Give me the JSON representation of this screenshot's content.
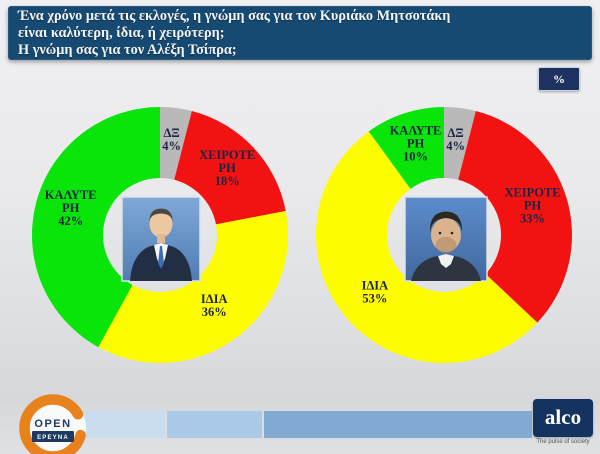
{
  "header": {
    "line1": "Ένα χρόνο μετά τις εκλογές,  η γνώμη σας για τον Κυριάκο Μητσοτάκη",
    "line2": "είναι καλύτερη, ίδια, ή χειρότερη;",
    "line3": "Η γνώμη σας για τον Αλέξη Τσίπρα;"
  },
  "percent_badge": "%",
  "colors": {
    "header_navy": "#174a72",
    "badge_navy": "#1d3260",
    "label_navy": "#1c2444",
    "green": "#09e409",
    "yellow": "#fdfd00",
    "red": "#f21212",
    "gray": "#b9b9b9"
  },
  "chart_data": [
    {
      "type": "pie",
      "subtype": "donut",
      "subject": "Κυριάκος Μητσοτάκης",
      "legend": false,
      "direction": "clockwise",
      "start_angle_deg": 0,
      "segments": [
        {
          "label": "ΔΞ",
          "value": 4,
          "color": "#b9b9b9",
          "label_lines": [
            "ΔΞ",
            "4%"
          ]
        },
        {
          "label": "ΧΕΙΡΟΤΕΡΗ",
          "value": 18,
          "color": "#f21212",
          "label_lines": [
            "ΧΕΙΡΟΤΕ",
            "ΡΗ",
            "18%"
          ]
        },
        {
          "label": "ΙΔΙΑ",
          "value": 36,
          "color": "#fdfd00",
          "label_lines": [
            "ΙΔΙΑ",
            "36%"
          ]
        },
        {
          "label": "ΚΑΛΥΤΕΡΗ",
          "value": 42,
          "color": "#09e409",
          "label_lines": [
            "ΚΑΛΥΤΕ",
            "ΡΗ",
            "42%"
          ]
        }
      ]
    },
    {
      "type": "pie",
      "subtype": "donut",
      "subject": "Αλέξης Τσίπρας",
      "legend": false,
      "direction": "clockwise",
      "start_angle_deg": 0,
      "segments": [
        {
          "label": "ΔΞ",
          "value": 4,
          "color": "#b9b9b9",
          "label_lines": [
            "ΔΞ",
            "4%"
          ]
        },
        {
          "label": "ΧΕΙΡΟΤΕΡΗ",
          "value": 33,
          "color": "#f21212",
          "label_lines": [
            "ΧΕΙΡΟΤΕ",
            "ΡΗ",
            "33%"
          ]
        },
        {
          "label": "ΙΔΙΑ",
          "value": 53,
          "color": "#fdfd00",
          "label_lines": [
            "ΙΔΙΑ",
            "53%"
          ]
        },
        {
          "label": "ΚΑΛΥΤΕΡΗ",
          "value": 10,
          "color": "#09e409",
          "label_lines": [
            "ΚΑΛΥΤΕ",
            "ΡΗ",
            "10%"
          ]
        }
      ]
    }
  ],
  "footer": {
    "open": {
      "brand": "OPEN",
      "sub": "ΕΡΕΥΝΑ"
    },
    "alco": {
      "brand": "alco",
      "tagline": "The pulse of society"
    }
  }
}
